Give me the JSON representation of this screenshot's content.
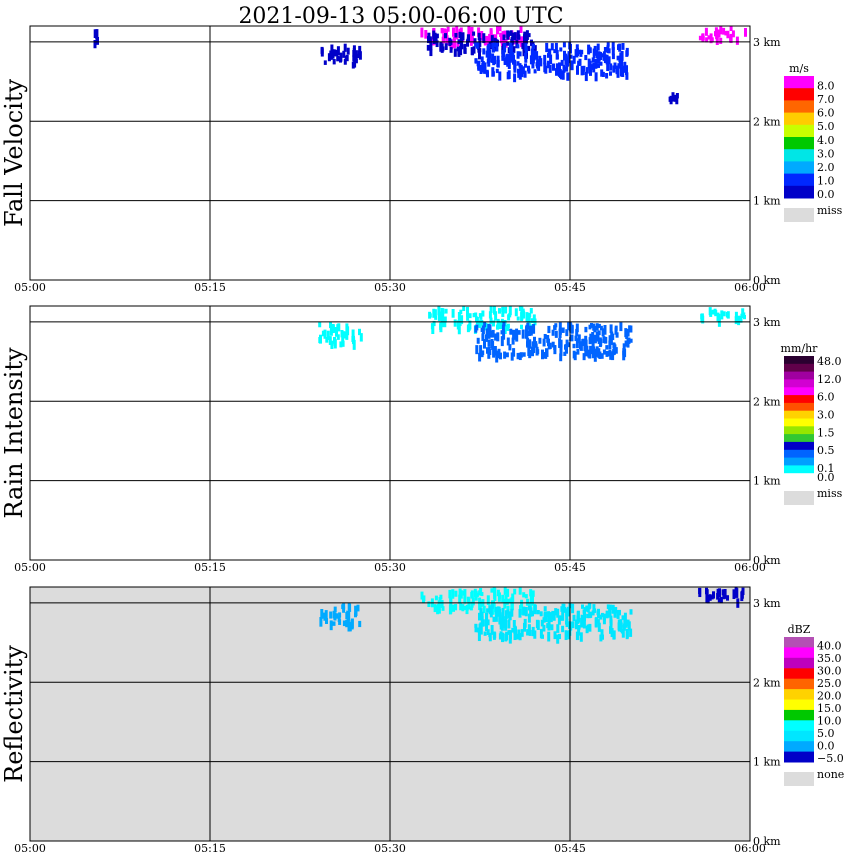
{
  "title": "2021-09-13   05:00-06:00 UTC",
  "x_ticks": [
    "05:00",
    "05:15",
    "05:30",
    "05:45",
    "06:00"
  ],
  "y_ticks": [
    "0 km",
    "1 km",
    "2 km",
    "3 km"
  ],
  "chart_data": [
    {
      "type": "heatmap",
      "ylabel": "Fall Velocity",
      "x_range": [
        "05:00",
        "06:00"
      ],
      "y_range_km": [
        0,
        3.2
      ],
      "background": "#ffffff",
      "colorbar": {
        "unit": "m/s",
        "labels": [
          "8.0",
          "7.0",
          "6.0",
          "5.0",
          "4.0",
          "3.0",
          "2.0",
          "1.0",
          "0.0"
        ],
        "colors": [
          "#ff00ff",
          "#ff0000",
          "#ff6600",
          "#ffcc00",
          "#c8ff00",
          "#00c800",
          "#00e6e6",
          "#00aaff",
          "#0028ff",
          "#0000c8"
        ],
        "miss_label": "miss",
        "miss_color": "#dcdcdc"
      },
      "echoes": [
        {
          "t": [
            5.25,
            5.5
          ],
          "h": [
            3.0,
            3.2
          ],
          "color": "#0000c8"
        },
        {
          "t": [
            24.2,
            27.5
          ],
          "h": [
            2.75,
            3.0
          ],
          "color": "#0000c8"
        },
        {
          "t": [
            32.5,
            41
          ],
          "h": [
            3.0,
            3.2
          ],
          "color": "#ff00ff"
        },
        {
          "t": [
            33,
            42
          ],
          "h": [
            2.9,
            3.15
          ],
          "color": "#0000c8"
        },
        {
          "t": [
            37,
            50
          ],
          "h": [
            2.6,
            3.0
          ],
          "color": "#0028ff"
        },
        {
          "t": [
            55.5,
            59.5
          ],
          "h": [
            3.05,
            3.2
          ],
          "color": "#ff00ff"
        },
        {
          "t": [
            53,
            54
          ],
          "h": [
            2.3,
            2.4
          ],
          "color": "#0000c8"
        }
      ]
    },
    {
      "type": "heatmap",
      "ylabel": "Rain Intensity",
      "x_range": [
        "05:00",
        "06:00"
      ],
      "y_range_km": [
        0,
        3.2
      ],
      "background": "#ffffff",
      "colorbar": {
        "unit": "mm/hr",
        "labels": [
          "48.0",
          "",
          "12.0",
          "",
          "6.0",
          "",
          "3.0",
          "",
          "1.5",
          "",
          "0.5",
          "",
          "0.1",
          "0.0"
        ],
        "colors": [
          "#2a0030",
          "#60004a",
          "#a000a0",
          "#d200d2",
          "#ff00ff",
          "#ff0000",
          "#ff5000",
          "#ffd200",
          "#ffff00",
          "#96e600",
          "#32c832",
          "#0000c8",
          "#0064ff",
          "#00a0ff",
          "#00ffff",
          "#ffffff"
        ],
        "miss_label": "miss",
        "miss_color": "#dcdcdc"
      },
      "echoes": [
        {
          "t": [
            24,
            27.5
          ],
          "h": [
            2.75,
            3.0
          ],
          "color": "#00ffff"
        },
        {
          "t": [
            33,
            42
          ],
          "h": [
            2.95,
            3.2
          ],
          "color": "#00ffff"
        },
        {
          "t": [
            37,
            50
          ],
          "h": [
            2.6,
            3.0
          ],
          "color": "#0064ff"
        },
        {
          "t": [
            55.5,
            59.5
          ],
          "h": [
            3.05,
            3.2
          ],
          "color": "#00ffff"
        }
      ]
    },
    {
      "type": "heatmap",
      "ylabel": "Reflectivity",
      "x_range": [
        "05:00",
        "06:00"
      ],
      "y_range_km": [
        0,
        3.2
      ],
      "background": "#dcdcdc",
      "colorbar": {
        "unit": "dBZ",
        "labels": [
          "40.0",
          "35.0",
          "30.0",
          "25.0",
          "20.0",
          "15.0",
          "10.0",
          "5.0",
          "0.0",
          "−5.0"
        ],
        "colors": [
          "#b450b4",
          "#ff00ff",
          "#be00be",
          "#ff0000",
          "#ff6400",
          "#ffd200",
          "#ffff00",
          "#00c800",
          "#00ffff",
          "#00e6ff",
          "#00aaff",
          "#0000c8"
        ],
        "miss_label": "none",
        "miss_color": "#dcdcdc"
      },
      "echoes": [
        {
          "t": [
            24,
            27.5
          ],
          "h": [
            2.75,
            3.0
          ],
          "color": "#00aaff"
        },
        {
          "t": [
            32.5,
            42
          ],
          "h": [
            2.95,
            3.2
          ],
          "color": "#00ffff"
        },
        {
          "t": [
            37,
            50
          ],
          "h": [
            2.6,
            3.0
          ],
          "color": "#00e6ff"
        },
        {
          "t": [
            55.5,
            59.5
          ],
          "h": [
            3.05,
            3.2
          ],
          "color": "#0000c8"
        }
      ]
    }
  ]
}
